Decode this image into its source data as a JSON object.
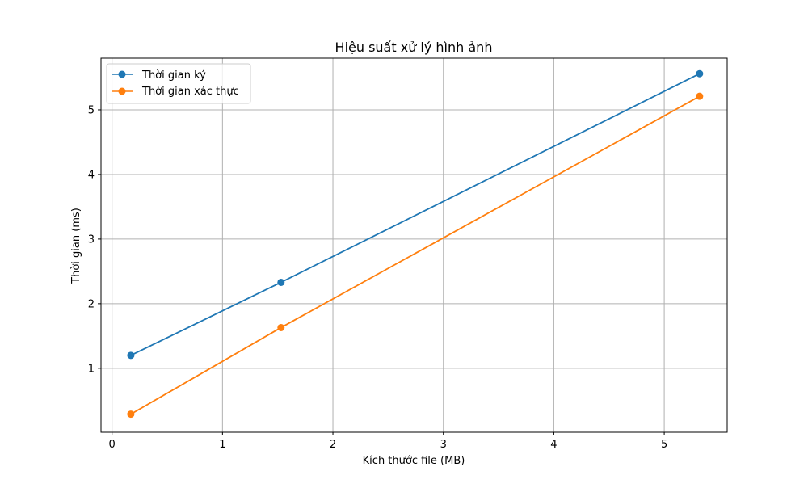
{
  "chart_data": {
    "type": "line",
    "title": "Hiệu suất xử lý hình ảnh",
    "xlabel": "Kích thước file (MB)",
    "ylabel": "Thời gian (ms)",
    "xlim": [
      -0.1,
      5.57
    ],
    "ylim": [
      0.01,
      5.8
    ],
    "xticks": [
      0,
      1,
      2,
      3,
      4,
      5
    ],
    "yticks": [
      1,
      2,
      3,
      4,
      5
    ],
    "grid": true,
    "legend_position": "top-left",
    "series": [
      {
        "name": "Thời gian ký",
        "color": "#1f77b4",
        "marker": "circle",
        "x": [
          0.17,
          1.53,
          5.32
        ],
        "y": [
          1.2,
          2.33,
          5.56
        ]
      },
      {
        "name": "Thời gian xác thực",
        "color": "#ff7f0e",
        "marker": "circle",
        "x": [
          0.17,
          1.53,
          5.32
        ],
        "y": [
          0.29,
          1.63,
          5.21
        ]
      }
    ]
  }
}
